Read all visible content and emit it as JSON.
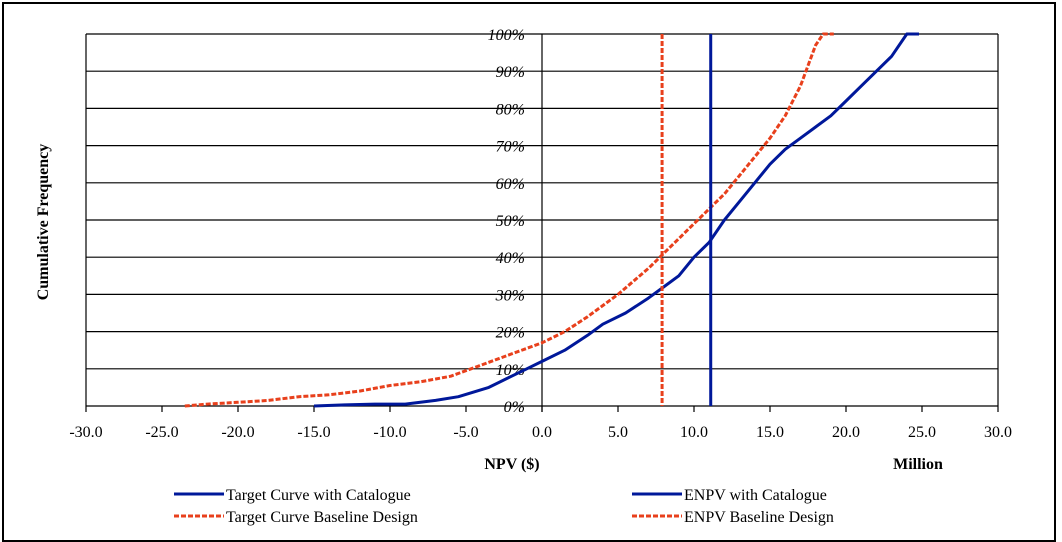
{
  "chart_data": {
    "type": "line",
    "xlabel": "NPV ($)",
    "x_unit_label": "Million",
    "ylabel": "Cumulative Frequency",
    "xlim": [
      -30,
      30
    ],
    "ylim": [
      0,
      100
    ],
    "x_ticks": [
      "-30.0",
      "-25.0",
      "-20.0",
      "-15.0",
      "-10.0",
      "-5.0",
      "0.0",
      "5.0",
      "10.0",
      "15.0",
      "20.0",
      "25.0",
      "30.0"
    ],
    "y_ticks": [
      "0%",
      "10%",
      "20%",
      "30%",
      "40%",
      "50%",
      "60%",
      "70%",
      "80%",
      "90%",
      "100%"
    ],
    "grid": "horizontal",
    "legend_position": "bottom",
    "colors": {
      "catalogue": "#00189a",
      "baseline": "#e8401c"
    },
    "series": [
      {
        "name": "Target Curve with Catalogue",
        "style": "solid",
        "points": [
          [
            -15,
            0
          ],
          [
            -13,
            0.3
          ],
          [
            -11,
            0.5
          ],
          [
            -9,
            0.5
          ],
          [
            -7,
            1.5
          ],
          [
            -5.5,
            2.5
          ],
          [
            -3.5,
            5
          ],
          [
            -2,
            8
          ],
          [
            -1,
            10
          ],
          [
            0,
            12
          ],
          [
            1.5,
            15
          ],
          [
            3,
            19
          ],
          [
            4,
            22
          ],
          [
            5.5,
            25
          ],
          [
            7,
            29
          ],
          [
            8,
            32
          ],
          [
            9,
            35
          ],
          [
            10,
            40
          ],
          [
            11,
            44
          ],
          [
            12,
            50
          ],
          [
            13,
            55
          ],
          [
            14,
            60
          ],
          [
            15,
            65
          ],
          [
            16,
            69
          ],
          [
            17,
            72
          ],
          [
            18,
            75
          ],
          [
            19,
            78
          ],
          [
            20,
            82
          ],
          [
            21,
            86
          ],
          [
            22,
            90
          ],
          [
            23,
            94
          ],
          [
            24,
            100
          ],
          [
            24.8,
            100
          ]
        ]
      },
      {
        "name": "Target Curve Baseline Design",
        "style": "dashed",
        "points": [
          [
            -23.5,
            0
          ],
          [
            -22,
            0.5
          ],
          [
            -20,
            1
          ],
          [
            -18,
            1.5
          ],
          [
            -16,
            2.5
          ],
          [
            -14,
            3
          ],
          [
            -12,
            4
          ],
          [
            -10,
            5.5
          ],
          [
            -8,
            6.5
          ],
          [
            -6,
            8
          ],
          [
            -4,
            11
          ],
          [
            -2,
            14
          ],
          [
            0,
            17
          ],
          [
            1.5,
            20
          ],
          [
            3,
            24
          ],
          [
            5,
            30
          ],
          [
            7,
            37
          ],
          [
            8,
            41
          ],
          [
            9,
            45
          ],
          [
            10,
            49
          ],
          [
            11,
            53
          ],
          [
            12,
            57
          ],
          [
            13,
            62
          ],
          [
            14,
            67
          ],
          [
            15,
            72
          ],
          [
            16,
            78
          ],
          [
            17,
            86
          ],
          [
            18,
            97
          ],
          [
            18.5,
            100
          ],
          [
            19.2,
            100
          ]
        ]
      },
      {
        "name": "ENPV with Catalogue",
        "style": "solid",
        "vertical_x": 11.1
      },
      {
        "name": "ENPV Baseline Design",
        "style": "dashed",
        "vertical_x": 7.9
      }
    ]
  }
}
